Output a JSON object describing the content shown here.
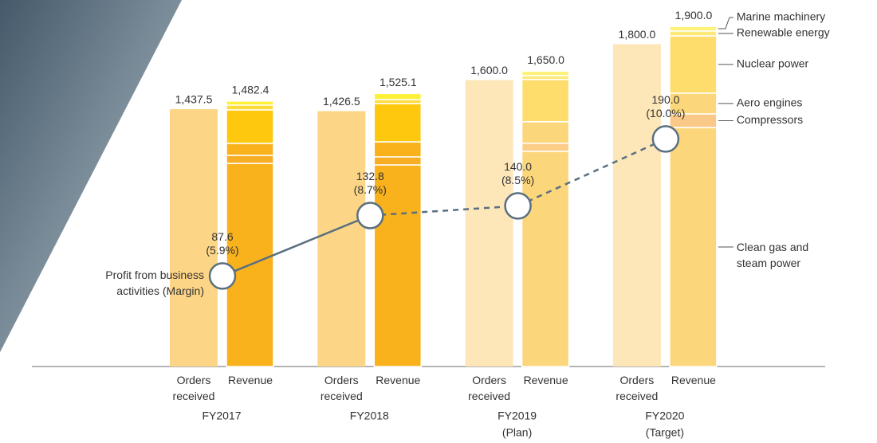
{
  "chart_data": {
    "type": "bar",
    "categories": [
      "FY2017",
      "FY2018",
      "FY2019",
      "FY2020"
    ],
    "category_notes": [
      null,
      null,
      "(Plan)",
      "(Target)"
    ],
    "ylim": [
      0,
      2000
    ],
    "y2lim": [
      20,
      287.5
    ],
    "orders": {
      "name": "Orders received",
      "colors": [
        "#fdd587",
        "#fdd587",
        "#fde6b8",
        "#fde6b8"
      ],
      "values": [
        1437.5,
        1426.5,
        1600.0,
        1800.0
      ],
      "value_labels": [
        "1,437.5",
        "1,426.5",
        "1,600.0",
        "1,800.0"
      ]
    },
    "revenue": {
      "name": "Revenue",
      "values": [
        1482.4,
        1525.1,
        1650.0,
        1900.0
      ],
      "value_labels": [
        "1,482.4",
        "1,525.1",
        "1,650.0",
        "1,900.0"
      ],
      "segments": [
        {
          "name": "Clean gas and steam power",
          "colors": [
            "#f9b21c",
            "#f9b21c",
            "#fcd67a",
            "#fcd67a"
          ],
          "values": [
            1134.4,
            1126,
            1202,
            1335
          ]
        },
        {
          "name": "Compressors",
          "colors": [
            "#f8ae24",
            "#f8ae24",
            "#fccd87",
            "#fbc987"
          ],
          "values": [
            45,
            45,
            45,
            76
          ]
        },
        {
          "name": "Aero engines",
          "colors": [
            "#f9b21c",
            "#f9b21c",
            "#fcd67a",
            "#fcd67a"
          ],
          "values": [
            67,
            84,
            120,
            116
          ]
        },
        {
          "name": "Nuclear power",
          "colors": [
            "#fec80f",
            "#fec80f",
            "#fedd6c",
            "#fedd6c"
          ],
          "values": [
            187,
            214,
            236,
            320
          ]
        },
        {
          "name": "Renewable energy",
          "colors": [
            "#fddc3c",
            "#fddc3c",
            "#fde97a",
            "#fde97a"
          ],
          "values": [
            27,
            22,
            22,
            27
          ]
        },
        {
          "name": "Marine machinery",
          "colors": [
            "#fef036",
            "#fef036",
            "#fef27a",
            "#fef27a"
          ],
          "values": [
            22,
            34,
            25,
            26
          ]
        }
      ]
    },
    "profit": {
      "name": "Profit from business activities (Margin)",
      "axis": "y2",
      "color": "#5a7080",
      "values": [
        87.6,
        132.8,
        140.0,
        190.0
      ],
      "value_labels": [
        "87.6",
        "132.8",
        "140.0",
        "190.0"
      ],
      "margins": [
        5.9,
        8.7,
        8.5,
        10.0
      ],
      "margin_labels": [
        "(5.9%)",
        "(8.7%)",
        "(8.5%)",
        "(10.0%)"
      ]
    }
  }
}
